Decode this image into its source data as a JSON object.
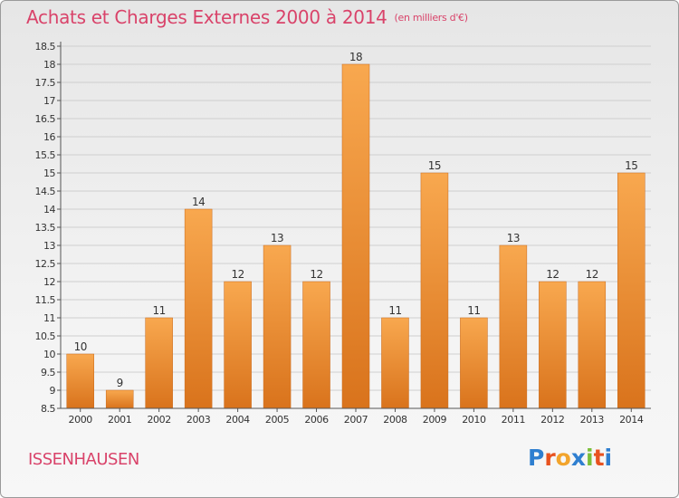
{
  "header": {
    "title": "Achats et Charges Externes 2000 à 2014",
    "subtitle": "(en milliers d'€)"
  },
  "commune": "ISSENHAUSEN",
  "logo": {
    "letters": [
      {
        "ch": "P",
        "color": "#2f7fd0"
      },
      {
        "ch": "r",
        "color": "#e8521f"
      },
      {
        "ch": "o",
        "color": "#f2a42c"
      },
      {
        "ch": "x",
        "color": "#2f7fd0"
      },
      {
        "ch": "i",
        "color": "#7bbf3a"
      },
      {
        "ch": "t",
        "color": "#e8521f"
      },
      {
        "ch": "i",
        "color": "#2f7fd0"
      }
    ]
  },
  "colors": {
    "title": "#d9436a",
    "bar_light": "#f7a54c",
    "bar_dark": "#d9731c",
    "grid": "#cfcfcf"
  },
  "chart_data": {
    "type": "bar",
    "title": "Achats et Charges Externes 2000 à 2014",
    "categories": [
      "2000",
      "2001",
      "2002",
      "2003",
      "2004",
      "2005",
      "2006",
      "2007",
      "2008",
      "2009",
      "2010",
      "2011",
      "2012",
      "2013",
      "2014"
    ],
    "values": [
      10,
      9,
      11,
      14,
      12,
      13,
      12,
      18,
      11,
      15,
      11,
      13,
      12,
      12,
      15
    ],
    "ylim": [
      8.5,
      18.5
    ],
    "yticks": [
      "8.5",
      "9",
      "9.5",
      "10",
      "10.5",
      "11",
      "11.5",
      "12",
      "12.5",
      "13",
      "13.5",
      "14",
      "14.5",
      "15",
      "15.5",
      "16",
      "16.5",
      "17",
      "17.5",
      "18",
      "18.5"
    ],
    "grid": true
  }
}
